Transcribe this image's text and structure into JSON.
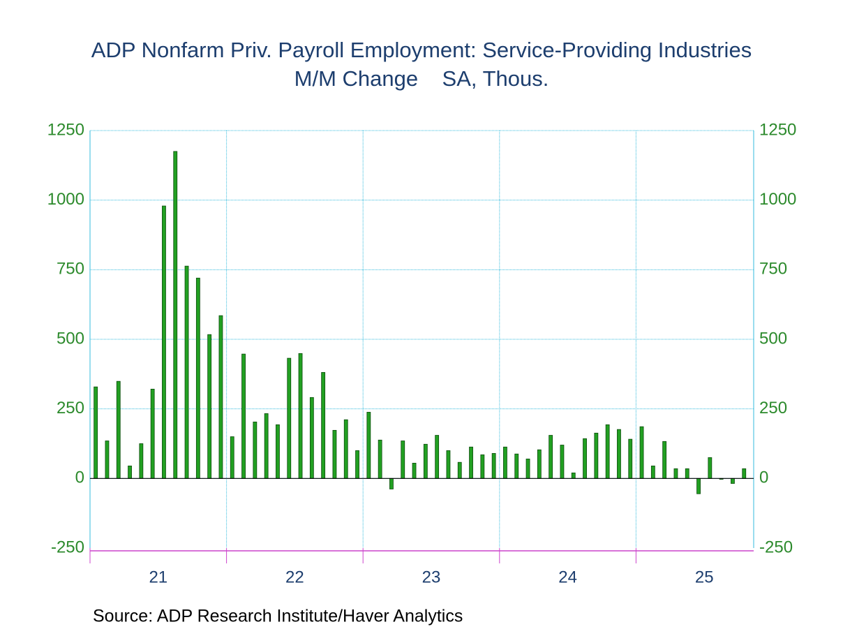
{
  "chart_data": {
    "type": "bar",
    "title": "ADP Nonfarm Priv. Payroll Employment: Service-Providing Industries",
    "subtitle": "M/M Change    SA, Thous.",
    "source": "Source:  ADP Research Institute/Haver Analytics",
    "year_labels": [
      "21",
      "22",
      "23",
      "24",
      "25"
    ],
    "values": [
      329,
      135,
      349,
      45,
      125,
      321,
      979,
      1175,
      763,
      720,
      517,
      585,
      150,
      447,
      203,
      233,
      193,
      432,
      449,
      291,
      381,
      173,
      211,
      100,
      238,
      138,
      -38,
      135,
      55,
      123,
      155,
      100,
      58,
      113,
      85,
      90,
      113,
      88,
      70,
      103,
      155,
      120,
      20,
      143,
      163,
      193,
      176,
      141,
      186,
      45,
      133,
      35,
      35,
      -55,
      75,
      -3,
      -18,
      35
    ],
    "color": "#22a022",
    "ylim": [
      -250,
      1250
    ],
    "yticks": [
      -250,
      0,
      250,
      500,
      750,
      1000,
      1250
    ],
    "grid": true
  }
}
